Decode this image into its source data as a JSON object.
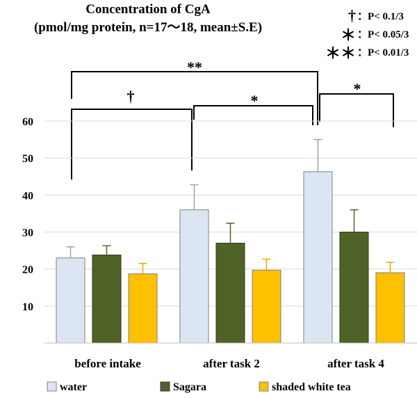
{
  "chart_data": {
    "type": "bar",
    "title_line1": "Concentration of CgA",
    "title_line2": "(pmol/mg protein, n=17～18, mean±S.E)",
    "categories": [
      "before intake",
      "after task 2",
      "after task 4"
    ],
    "ylim": [
      0,
      60
    ],
    "yticks": [
      "10",
      "20",
      "30",
      "40",
      "50",
      "60"
    ],
    "series": [
      {
        "name": "water",
        "color": "#dce6f2",
        "values": [
          23,
          36,
          46.3
        ],
        "errors": [
          3,
          6.8,
          8.7
        ]
      },
      {
        "name": "Sagara",
        "color": "#4f6228",
        "values": [
          23.8,
          27,
          30
        ],
        "errors": [
          2.5,
          5.4,
          6
        ]
      },
      {
        "name": "shaded white tea",
        "color": "#ffc000",
        "values": [
          18.7,
          19.7,
          19
        ],
        "errors": [
          2.8,
          3,
          2.8
        ]
      }
    ],
    "significance_legend": [
      {
        "symbol": "†",
        "text": "：P< 0.1/3"
      },
      {
        "symbol": "＊",
        "text": "：P< 0.05/3"
      },
      {
        "symbol": "＊＊",
        "text": "：P< 0.01/3"
      }
    ],
    "brackets": [
      {
        "from": 0,
        "to": 2,
        "label": "**"
      },
      {
        "from": 0,
        "to": 1,
        "label": "†"
      },
      {
        "from": 1,
        "to": 2,
        "label": "*"
      },
      {
        "from": 2,
        "to": 2,
        "label": "*"
      }
    ]
  }
}
